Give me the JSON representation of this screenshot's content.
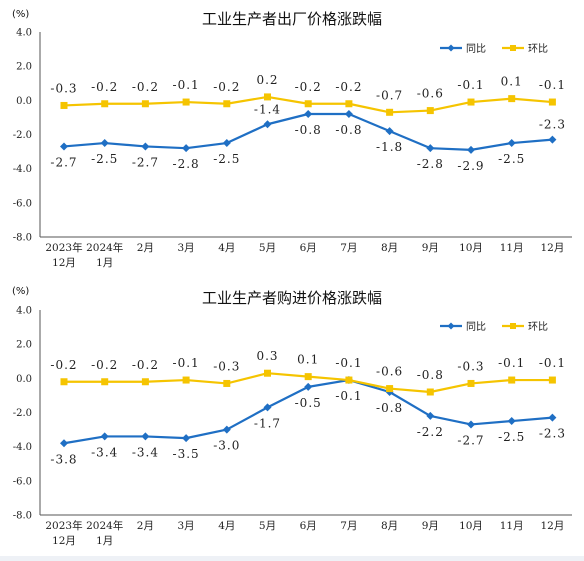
{
  "chart_data": [
    {
      "type": "line",
      "title": "工业生产者出厂价格涨跌幅",
      "unit_label": "(%)",
      "categories": [
        [
          "2023年",
          "12月"
        ],
        [
          "2024年",
          "1月"
        ],
        [
          "2月"
        ],
        [
          "3月"
        ],
        [
          "4月"
        ],
        [
          "5月"
        ],
        [
          "6月"
        ],
        [
          "7月"
        ],
        [
          "8月"
        ],
        [
          "9月"
        ],
        [
          "10月"
        ],
        [
          "11月"
        ],
        [
          "12月"
        ]
      ],
      "ylim": [
        -8.0,
        4.0
      ],
      "yticks": [
        "4.0",
        "2.0",
        "0.0",
        "-2.0",
        "-4.0",
        "-6.0",
        "-8.0"
      ],
      "grid": false,
      "legend_position": "top-right",
      "series": [
        {
          "name": "同比",
          "color": "#1f6fc4",
          "values": [
            -2.7,
            -2.5,
            -2.7,
            -2.8,
            -2.5,
            -1.4,
            -0.8,
            -0.8,
            -1.8,
            -2.8,
            -2.9,
            -2.5,
            -2.3
          ],
          "labels": [
            "-2.7",
            "-2.5",
            "-2.7",
            "-2.8",
            "-2.5",
            "-1.4",
            "-0.8",
            "-0.8",
            "-1.8",
            "-2.8",
            "-2.9",
            "-2.5",
            "-2.3"
          ],
          "label_side": [
            "below",
            "below",
            "below",
            "below",
            "below",
            "above",
            "below",
            "below",
            "below",
            "below",
            "below",
            "below",
            "above"
          ]
        },
        {
          "name": "环比",
          "color": "#f5c400",
          "values": [
            -0.3,
            -0.2,
            -0.2,
            -0.1,
            -0.2,
            0.2,
            -0.2,
            -0.2,
            -0.7,
            -0.6,
            -0.1,
            0.1,
            -0.1
          ],
          "labels": [
            "-0.3",
            "-0.2",
            "-0.2",
            "-0.1",
            "-0.2",
            "0.2",
            "-0.2",
            "-0.2",
            "-0.7",
            "-0.6",
            "-0.1",
            "0.1",
            "-0.1"
          ],
          "label_side": [
            "above",
            "above",
            "above",
            "above",
            "above",
            "above",
            "above",
            "above",
            "above",
            "above",
            "above",
            "above",
            "above"
          ]
        }
      ]
    },
    {
      "type": "line",
      "title": "工业生产者购进价格涨跌幅",
      "unit_label": "(%)",
      "categories": [
        [
          "2023年",
          "12月"
        ],
        [
          "2024年",
          "1月"
        ],
        [
          "2月"
        ],
        [
          "3月"
        ],
        [
          "4月"
        ],
        [
          "5月"
        ],
        [
          "6月"
        ],
        [
          "7月"
        ],
        [
          "8月"
        ],
        [
          "9月"
        ],
        [
          "10月"
        ],
        [
          "11月"
        ],
        [
          "12月"
        ]
      ],
      "ylim": [
        -8.0,
        4.0
      ],
      "yticks": [
        "4.0",
        "2.0",
        "0.0",
        "-2.0",
        "-4.0",
        "-6.0",
        "-8.0"
      ],
      "grid": false,
      "legend_position": "top-right",
      "series": [
        {
          "name": "同比",
          "color": "#1f6fc4",
          "values": [
            -3.8,
            -3.4,
            -3.4,
            -3.5,
            -3.0,
            -1.7,
            -0.5,
            -0.1,
            -0.8,
            -2.2,
            -2.7,
            -2.5,
            -2.3
          ],
          "labels": [
            "-3.8",
            "-3.4",
            "-3.4",
            "-3.5",
            "-3.0",
            "-1.7",
            "-0.5",
            "-0.1",
            "-0.8",
            "-2.2",
            "-2.7",
            "-2.5",
            "-2.3"
          ],
          "label_side": [
            "below",
            "below",
            "below",
            "below",
            "below",
            "below",
            "below",
            "below",
            "below",
            "below",
            "below",
            "below",
            "below"
          ]
        },
        {
          "name": "环比",
          "color": "#f5c400",
          "values": [
            -0.2,
            -0.2,
            -0.2,
            -0.1,
            -0.3,
            0.3,
            0.1,
            -0.1,
            -0.6,
            -0.8,
            -0.3,
            -0.1,
            -0.1
          ],
          "labels": [
            "-0.2",
            "-0.2",
            "-0.2",
            "-0.1",
            "-0.3",
            "0.3",
            "0.1",
            "-0.1",
            "-0.6",
            "-0.8",
            "-0.3",
            "-0.1",
            "-0.1"
          ],
          "label_side": [
            "above",
            "above",
            "above",
            "above",
            "above",
            "above",
            "above",
            "above",
            "above",
            "above",
            "above",
            "above",
            "above"
          ]
        }
      ]
    }
  ]
}
